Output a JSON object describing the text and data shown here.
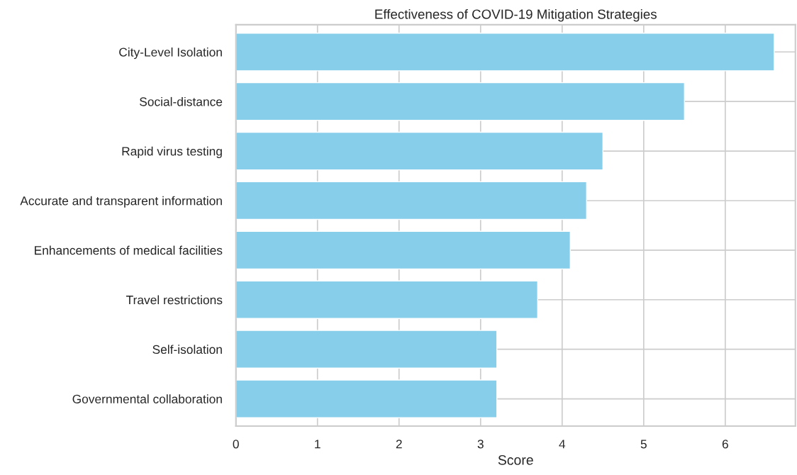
{
  "chart_data": {
    "type": "bar",
    "orientation": "horizontal",
    "title": "Effectiveness of COVID-19 Mitigation Strategies",
    "xlabel": "Score",
    "categories": [
      "City-Level Isolation",
      "Social-distance",
      "Rapid virus testing",
      "Accurate and transparent information",
      "Enhancements of medical facilities",
      "Travel restrictions",
      "Self-isolation",
      "Governmental collaboration"
    ],
    "values": [
      6.6,
      5.5,
      4.5,
      4.3,
      4.1,
      3.7,
      3.2,
      3.2
    ],
    "color": "#87ceeb",
    "xlim": [
      0,
      6.86
    ],
    "xticks": [
      0,
      1,
      2,
      3,
      4,
      5,
      6
    ],
    "grid": true
  }
}
